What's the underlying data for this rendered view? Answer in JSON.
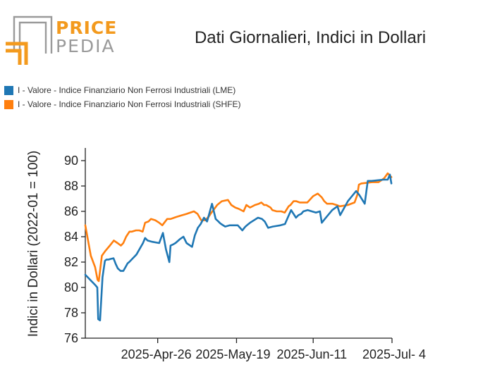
{
  "header": {
    "logo_top": "PRICE",
    "logo_bottom": "PEDIA",
    "title": "Dati Giornalieri, Indici in Dollari"
  },
  "colors": {
    "lme": "#1f77b4",
    "shfe": "#ff7f0e",
    "logo_orange": "#f39a1e",
    "logo_gray": "#9a9a9a"
  },
  "chart_data": {
    "type": "line",
    "title": "Dati Giornalieri, Indici in Dollari",
    "xlabel": "",
    "ylabel": "Indici in Dollari (2022-01 = 100)",
    "ylim": [
      76,
      91
    ],
    "yticks": [
      76,
      78,
      80,
      82,
      84,
      86,
      88,
      90
    ],
    "xlim": [
      0,
      100
    ],
    "xticks": [
      {
        "x": 23.6,
        "label": "2025-Apr-26"
      },
      {
        "x": 49.3,
        "label": "2025-May-19"
      },
      {
        "x": 74.3,
        "label": "2025-Jun-11"
      },
      {
        "x": 100,
        "label": "2025-Jul- 4"
      }
    ],
    "series": [
      {
        "name": "I - Valore - Indice Finanziario Non Ferrosi Industriali (LME)",
        "color": "#1f77b4",
        "x": [
          0.0,
          3.2,
          3.9,
          4.2,
          4.8,
          5.6,
          6.4,
          6.9,
          7.6,
          8.3,
          9.2,
          10.0,
          10.6,
          11.5,
          12.4,
          13.1,
          13.8,
          14.3,
          15.5,
          16.7,
          18.8,
          19.5,
          20.3,
          21.8,
          24.1,
          25.3,
          26.3,
          27.4,
          27.8,
          28.7,
          29.4,
          30.8,
          32.0,
          33.0,
          34.8,
          35.7,
          36.7,
          37.6,
          38.7,
          39.7,
          41.3,
          42.5,
          43.4,
          43.8,
          44.3,
          45.6,
          47.1,
          49.7,
          51.2,
          52.2,
          52.7,
          53.7,
          56.3,
          57.6,
          58.5,
          59.6,
          61.1,
          63.6,
          65.1,
          66.0,
          67.1,
          68.7,
          69.5,
          70.4,
          71.1,
          72.5,
          75.2,
          76.5,
          77.1,
          78.1,
          80.5,
          82.2,
          83.1,
          85.6,
          88.3,
          89.3,
          91.1,
          92.1,
          93.4,
          97.2,
          98.6,
          99.3,
          99.8
        ],
        "values": [
          81.0,
          80.2,
          80.0,
          77.5,
          77.4,
          80.8,
          82.1,
          82.2,
          82.2,
          82.25,
          82.3,
          81.8,
          81.5,
          81.3,
          81.3,
          81.6,
          81.9,
          82.0,
          82.3,
          82.6,
          83.5,
          83.9,
          83.7,
          83.6,
          83.5,
          84.3,
          83.0,
          82.0,
          83.3,
          83.4,
          83.5,
          83.8,
          84.0,
          83.5,
          83.2,
          84.1,
          84.7,
          85.0,
          85.5,
          85.2,
          86.6,
          85.4,
          85.2,
          85.1,
          85.0,
          84.8,
          84.9,
          84.9,
          84.5,
          84.8,
          84.9,
          85.1,
          85.5,
          85.4,
          85.2,
          84.7,
          84.8,
          84.9,
          85.0,
          85.5,
          86.1,
          85.5,
          85.7,
          85.8,
          86.0,
          86.1,
          85.9,
          86.0,
          85.1,
          85.4,
          86.1,
          86.4,
          85.7,
          86.8,
          87.6,
          87.3,
          86.6,
          88.4,
          88.4,
          88.5,
          88.5,
          88.9,
          88.2
        ]
      },
      {
        "name": "I - Valore - Indice Finanziario Non Ferrosi Industriali (SHFE)",
        "color": "#ff7f0e",
        "x": [
          0.0,
          1.8,
          3.2,
          4.0,
          4.4,
          5.4,
          6.6,
          8.0,
          9.3,
          10.5,
          11.6,
          12.4,
          13.3,
          14.4,
          15.2,
          16.5,
          17.6,
          18.7,
          19.5,
          20.6,
          21.4,
          22.8,
          24.1,
          25.1,
          26.7,
          27.8,
          29.0,
          30.2,
          33.0,
          35.4,
          36.6,
          37.8,
          39.1,
          40.3,
          41.1,
          42.1,
          43.0,
          44.5,
          46.5,
          47.6,
          48.9,
          50.0,
          51.6,
          52.5,
          53.7,
          55.3,
          56.6,
          57.4,
          58.3,
          59.0,
          60.4,
          61.0,
          62.4,
          63.9,
          65.0,
          66.3,
          66.9,
          67.9,
          68.8,
          69.9,
          70.6,
          71.3,
          72.4,
          74.3,
          75.8,
          77.1,
          77.9,
          78.8,
          80.6,
          81.9,
          83.0,
          85.6,
          87.8,
          88.7,
          89.2,
          90.0,
          93.5,
          95.6,
          97.4,
          98.6,
          99.4,
          99.8
        ],
        "values": [
          84.9,
          82.5,
          81.6,
          80.6,
          80.5,
          82.5,
          82.9,
          83.3,
          83.7,
          83.5,
          83.3,
          83.5,
          84.0,
          84.4,
          84.4,
          84.5,
          84.5,
          84.4,
          85.1,
          85.2,
          85.4,
          85.3,
          85.1,
          84.9,
          85.4,
          85.4,
          85.5,
          85.6,
          85.8,
          86.0,
          85.8,
          85.3,
          85.3,
          85.6,
          85.9,
          86.2,
          86.5,
          86.8,
          86.9,
          86.5,
          86.3,
          86.2,
          86.0,
          86.5,
          86.3,
          86.5,
          86.6,
          86.7,
          86.5,
          86.5,
          86.3,
          86.1,
          86.0,
          86.0,
          85.9,
          86.4,
          86.5,
          86.8,
          86.8,
          86.7,
          86.7,
          86.7,
          86.7,
          87.2,
          87.4,
          87.1,
          86.8,
          86.6,
          86.6,
          86.5,
          86.4,
          86.5,
          86.7,
          87.3,
          88.1,
          88.2,
          88.3,
          88.3,
          88.6,
          89.0,
          88.8,
          88.7
        ]
      }
    ]
  }
}
